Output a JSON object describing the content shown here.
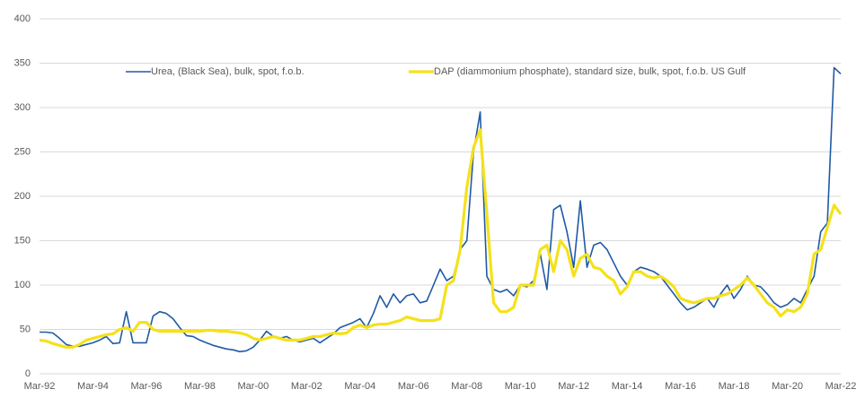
{
  "chart_data": {
    "type": "line",
    "categories": [
      "Mar-92",
      null,
      null,
      null,
      null,
      null,
      null,
      null,
      "Mar-94",
      null,
      null,
      null,
      null,
      null,
      null,
      null,
      "Mar-96",
      null,
      null,
      null,
      null,
      null,
      null,
      null,
      "Mar-98",
      null,
      null,
      null,
      null,
      null,
      null,
      null,
      "Mar-00",
      null,
      null,
      null,
      null,
      null,
      null,
      null,
      "Mar-02",
      null,
      null,
      null,
      null,
      null,
      null,
      null,
      "Mar-04",
      null,
      null,
      null,
      null,
      null,
      null,
      null,
      "Mar-06",
      null,
      null,
      null,
      null,
      null,
      null,
      null,
      "Mar-08",
      null,
      null,
      null,
      null,
      null,
      null,
      null,
      "Mar-10",
      null,
      null,
      null,
      null,
      null,
      null,
      null,
      "Mar-12",
      null,
      null,
      null,
      null,
      null,
      null,
      null,
      "Mar-14",
      null,
      null,
      null,
      null,
      null,
      null,
      null,
      "Mar-16",
      null,
      null,
      null,
      null,
      null,
      null,
      null,
      "Mar-18",
      null,
      null,
      null,
      null,
      null,
      null,
      null,
      "Mar-20",
      null,
      null,
      null,
      null,
      null,
      null,
      null,
      "Mar-22"
    ],
    "series": [
      {
        "name": "Urea, (Black Sea), bulk, spot, f.o.b.",
        "color": "#1f5aa6",
        "values": [
          47,
          47,
          46,
          40,
          33,
          31,
          31,
          33,
          35,
          38,
          42,
          34,
          35,
          70,
          35,
          35,
          35,
          65,
          70,
          68,
          62,
          52,
          43,
          42,
          38,
          35,
          32,
          30,
          28,
          27,
          25,
          26,
          30,
          38,
          48,
          42,
          40,
          42,
          38,
          36,
          38,
          40,
          35,
          40,
          45,
          52,
          55,
          58,
          62,
          52,
          68,
          88,
          75,
          90,
          80,
          88,
          90,
          80,
          82,
          100,
          118,
          105,
          110,
          140,
          150,
          250,
          295,
          110,
          95,
          92,
          95,
          88,
          100,
          98,
          105,
          135,
          95,
          185,
          190,
          160,
          120,
          195,
          120,
          145,
          148,
          140,
          125,
          110,
          100,
          115,
          120,
          118,
          115,
          110,
          100,
          90,
          80,
          72,
          75,
          80,
          85,
          75,
          90,
          100,
          85,
          95,
          110,
          100,
          98,
          90,
          80,
          75,
          78,
          85,
          80,
          95,
          110,
          160,
          170,
          345,
          338
        ]
      },
      {
        "name": "DAP (diammonium phosphate), standard size, bulk, spot, f.o.b. US Gulf",
        "color": "#f5e11a",
        "values": [
          38,
          37,
          34,
          32,
          30,
          30,
          33,
          38,
          40,
          42,
          44,
          45,
          50,
          52,
          48,
          58,
          58,
          50,
          48,
          48,
          48,
          48,
          48,
          48,
          48,
          49,
          49,
          48,
          48,
          47,
          46,
          44,
          40,
          38,
          40,
          42,
          40,
          38,
          38,
          38,
          40,
          42,
          42,
          44,
          46,
          45,
          46,
          52,
          55,
          52,
          55,
          56,
          56,
          58,
          60,
          64,
          62,
          60,
          60,
          60,
          62,
          100,
          105,
          140,
          210,
          255,
          275,
          180,
          80,
          70,
          70,
          75,
          100,
          100,
          100,
          140,
          145,
          115,
          150,
          140,
          110,
          130,
          135,
          120,
          118,
          110,
          105,
          90,
          98,
          115,
          115,
          110,
          108,
          110,
          105,
          98,
          85,
          82,
          80,
          82,
          85,
          85,
          88,
          90,
          95,
          100,
          108,
          100,
          90,
          80,
          75,
          65,
          72,
          70,
          75,
          90,
          135,
          140,
          165,
          190,
          180
        ]
      }
    ],
    "ylim": [
      0,
      400
    ],
    "yticks": [
      0,
      50,
      100,
      150,
      200,
      250,
      300,
      350,
      400
    ],
    "grid": true,
    "legend": "top"
  }
}
